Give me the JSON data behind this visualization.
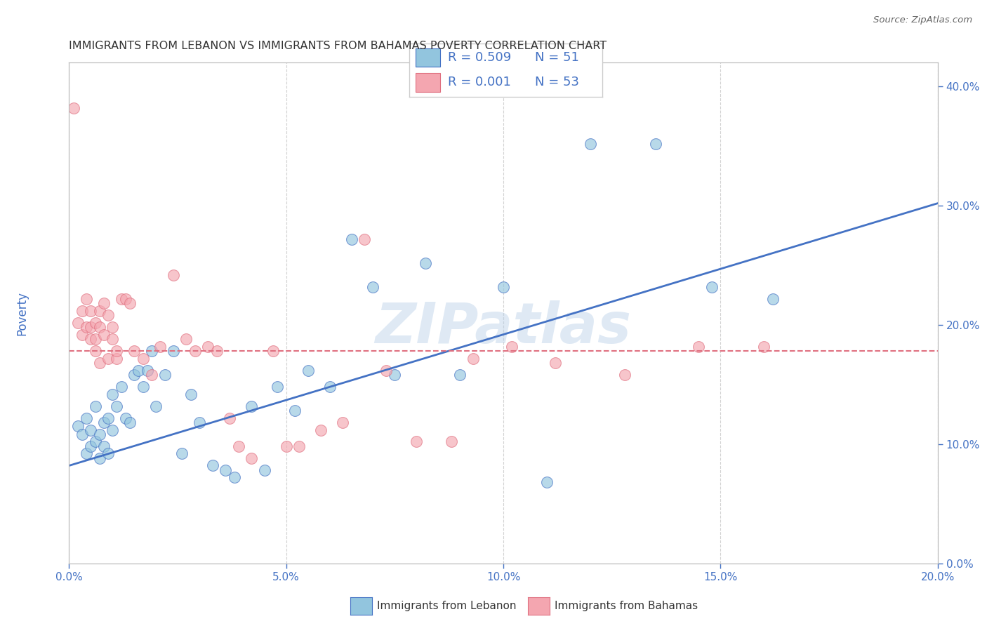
{
  "title": "IMMIGRANTS FROM LEBANON VS IMMIGRANTS FROM BAHAMAS POVERTY CORRELATION CHART",
  "source": "Source: ZipAtlas.com",
  "ylabel_label": "Poverty",
  "x_label_bottom": "Immigrants from Lebanon",
  "x_label_bottom2": "Immigrants from Bahamas",
  "legend_r1": "R = 0.509",
  "legend_n1": "N = 51",
  "legend_r2": "R = 0.001",
  "legend_n2": "N = 53",
  "xlim": [
    0.0,
    0.2
  ],
  "ylim": [
    0.0,
    0.42
  ],
  "yticks": [
    0.0,
    0.1,
    0.2,
    0.3,
    0.4
  ],
  "xticks": [
    0.0,
    0.05,
    0.1,
    0.15,
    0.2
  ],
  "color_blue": "#92c5de",
  "color_pink": "#f4a6b0",
  "line_blue": "#4472c4",
  "line_pink": "#e07080",
  "watermark": "ZIPatlas",
  "blue_scatter_x": [
    0.002,
    0.003,
    0.004,
    0.004,
    0.005,
    0.005,
    0.006,
    0.006,
    0.007,
    0.007,
    0.008,
    0.008,
    0.009,
    0.009,
    0.01,
    0.01,
    0.011,
    0.012,
    0.013,
    0.014,
    0.015,
    0.016,
    0.017,
    0.018,
    0.019,
    0.02,
    0.022,
    0.024,
    0.026,
    0.028,
    0.03,
    0.033,
    0.036,
    0.038,
    0.042,
    0.045,
    0.048,
    0.052,
    0.055,
    0.06,
    0.065,
    0.07,
    0.075,
    0.082,
    0.09,
    0.1,
    0.11,
    0.12,
    0.135,
    0.148,
    0.162
  ],
  "blue_scatter_y": [
    0.115,
    0.108,
    0.122,
    0.092,
    0.112,
    0.098,
    0.132,
    0.102,
    0.108,
    0.088,
    0.118,
    0.098,
    0.122,
    0.092,
    0.142,
    0.112,
    0.132,
    0.148,
    0.122,
    0.118,
    0.158,
    0.162,
    0.148,
    0.162,
    0.178,
    0.132,
    0.158,
    0.178,
    0.092,
    0.142,
    0.118,
    0.082,
    0.078,
    0.072,
    0.132,
    0.078,
    0.148,
    0.128,
    0.162,
    0.148,
    0.272,
    0.232,
    0.158,
    0.252,
    0.158,
    0.232,
    0.068,
    0.352,
    0.352,
    0.232,
    0.222
  ],
  "pink_scatter_x": [
    0.001,
    0.002,
    0.003,
    0.003,
    0.004,
    0.004,
    0.005,
    0.005,
    0.005,
    0.006,
    0.006,
    0.006,
    0.007,
    0.007,
    0.007,
    0.008,
    0.008,
    0.009,
    0.009,
    0.01,
    0.01,
    0.011,
    0.011,
    0.012,
    0.013,
    0.014,
    0.015,
    0.017,
    0.019,
    0.021,
    0.024,
    0.027,
    0.029,
    0.032,
    0.034,
    0.037,
    0.039,
    0.042,
    0.047,
    0.05,
    0.053,
    0.058,
    0.063,
    0.068,
    0.073,
    0.08,
    0.088,
    0.093,
    0.102,
    0.112,
    0.128,
    0.145,
    0.16
  ],
  "pink_scatter_y": [
    0.382,
    0.202,
    0.192,
    0.212,
    0.198,
    0.222,
    0.188,
    0.212,
    0.198,
    0.188,
    0.178,
    0.202,
    0.198,
    0.168,
    0.212,
    0.192,
    0.218,
    0.172,
    0.208,
    0.188,
    0.198,
    0.172,
    0.178,
    0.222,
    0.222,
    0.218,
    0.178,
    0.172,
    0.158,
    0.182,
    0.242,
    0.188,
    0.178,
    0.182,
    0.178,
    0.122,
    0.098,
    0.088,
    0.178,
    0.098,
    0.098,
    0.112,
    0.118,
    0.272,
    0.162,
    0.102,
    0.102,
    0.172,
    0.182,
    0.168,
    0.158,
    0.182,
    0.182
  ],
  "blue_line_x": [
    0.0,
    0.2
  ],
  "blue_line_y": [
    0.082,
    0.302
  ],
  "pink_line_y_val": 0.178,
  "fig_bg": "#ffffff",
  "grid_color": "#cccccc",
  "title_color": "#333333",
  "tick_color": "#4472c4",
  "legend_text_color": "#4472c4"
}
